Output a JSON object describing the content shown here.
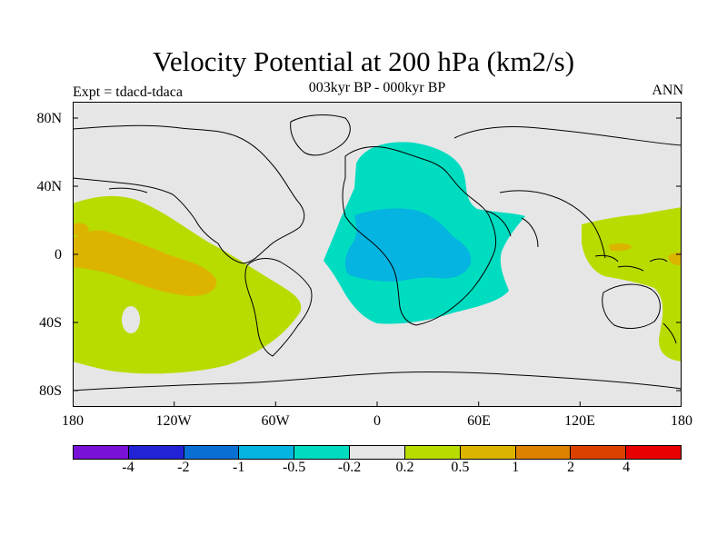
{
  "title": "Velocity Potential at 200 hPa (km2/s)",
  "subtitle": "003kyr BP - 000kyr BP",
  "left_label": "Expt = tdacd-tdaca",
  "right_label": "ANN",
  "chart_data": {
    "type": "heatmap",
    "variable": "Velocity Potential at 200 hPa",
    "units": "km2/s",
    "projection": "cylindrical equidistant",
    "lon_range": [
      -180,
      180
    ],
    "lat_range": [
      -90,
      90
    ],
    "lat_tick_labels": [
      "80N",
      "40N",
      "0",
      "40S",
      "80S"
    ],
    "lon_tick_labels": [
      "180",
      "120W",
      "60W",
      "0",
      "60E",
      "120E",
      "180"
    ],
    "contour_levels": [
      "-4",
      "-2",
      "-1",
      "-0.5",
      "-0.2",
      "0.2",
      "0.5",
      "1",
      "2",
      "4"
    ],
    "colors": [
      "#7a11d6",
      "#2222d6",
      "#0a6fd4",
      "#05b4e0",
      "#00dcc0",
      "#e6e6e6",
      "#b8dc00",
      "#dcb400",
      "#dc8200",
      "#dc4100",
      "#e60000"
    ],
    "regions": [
      {
        "name": "Africa / Atlantic / Europe",
        "value_range": "-0.5 to -0.2",
        "color_index": 4
      },
      {
        "name": "Central & eastern Africa",
        "value_range": "-1 to -0.5",
        "color_index": 3
      },
      {
        "name": "Eastern Pacific",
        "value_range": "0.2 to 0.5",
        "color_index": 6
      },
      {
        "name": "Central Pacific band",
        "value_range": "0.5 to 1",
        "color_index": 7
      },
      {
        "name": "Western Pacific / Maritime Continent",
        "value_range": "0.2 to 0.5",
        "color_index": 6
      }
    ]
  }
}
